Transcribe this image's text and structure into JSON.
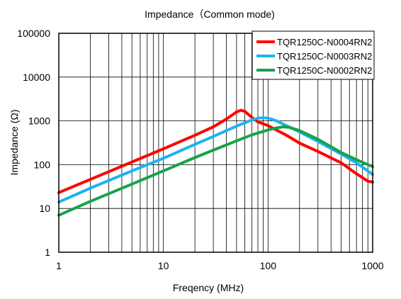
{
  "chart_data": {
    "type": "line",
    "title": "Impedance（Common mode)",
    "xlabel": "Freqency (MHz)",
    "ylabel": "Impedance (Ω)",
    "xscale": "log",
    "yscale": "log",
    "xlim": [
      1,
      1000
    ],
    "ylim": [
      1,
      100000
    ],
    "x_ticks": [
      1,
      10,
      100,
      1000
    ],
    "x_tick_labels": [
      "1",
      "10",
      "100",
      "1000"
    ],
    "y_ticks": [
      1,
      10,
      100,
      1000,
      10000,
      100000
    ],
    "y_tick_labels": [
      "1",
      "10",
      "100",
      "1000",
      "10000",
      "100000"
    ],
    "grid": true,
    "legend_position": "top-right",
    "series": [
      {
        "name": "TQR1250C-N0004RN2",
        "color": "#ff0000",
        "x": [
          1,
          2,
          5,
          10,
          20,
          30,
          40,
          50,
          55,
          60,
          70,
          80,
          100,
          150,
          200,
          300,
          500,
          700,
          900,
          1000
        ],
        "y": [
          23,
          46,
          115,
          230,
          470,
          730,
          1100,
          1600,
          1750,
          1650,
          1200,
          950,
          780,
          470,
          310,
          200,
          110,
          62,
          42,
          40
        ]
      },
      {
        "name": "TQR1250C-N0003RN2",
        "color": "#1cb3f0",
        "x": [
          1,
          2,
          5,
          10,
          20,
          30,
          50,
          70,
          80,
          90,
          100,
          110,
          120,
          150,
          200,
          300,
          500,
          700,
          1000
        ],
        "y": [
          14,
          29,
          72,
          140,
          290,
          440,
          760,
          1050,
          1150,
          1180,
          1150,
          1080,
          1000,
          780,
          560,
          340,
          175,
          110,
          60
        ]
      },
      {
        "name": "TQR1250C-N0002RN2",
        "color": "#16a34a",
        "x": [
          1,
          2,
          5,
          10,
          20,
          30,
          50,
          70,
          100,
          120,
          140,
          160,
          200,
          300,
          500,
          700,
          1000
        ],
        "y": [
          7,
          14.5,
          36,
          72,
          145,
          215,
          350,
          480,
          620,
          690,
          730,
          710,
          600,
          380,
          190,
          130,
          90
        ]
      }
    ]
  }
}
